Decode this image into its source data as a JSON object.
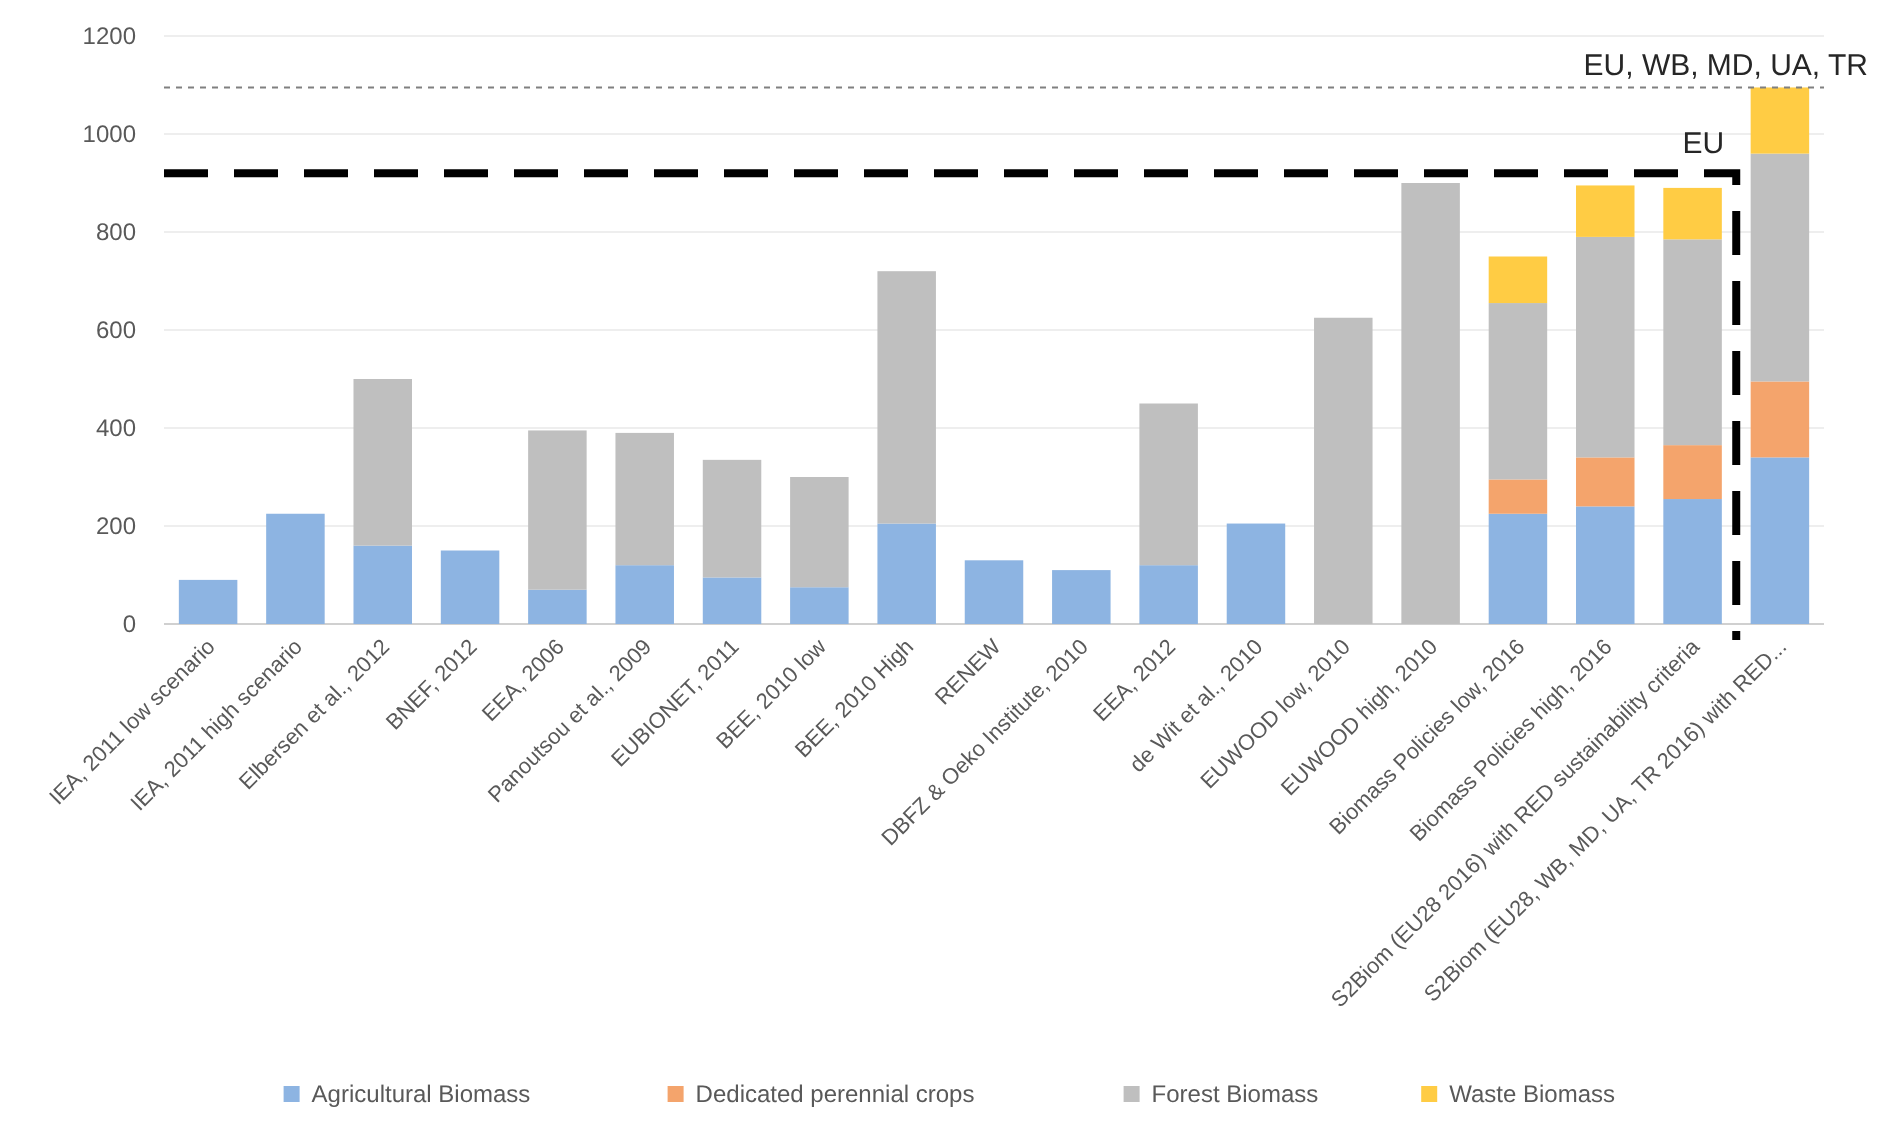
{
  "chart_data": {
    "type": "bar",
    "stacked": true,
    "categories": [
      "IEA, 2011 low scenario",
      "IEA, 2011 high scenario",
      "Elbersen et al., 2012",
      "BNEF, 2012",
      "EEA, 2006",
      "Panoutsou et al., 2009",
      "EUBIONET, 2011",
      "BEE, 2010 low",
      "BEE, 2010 High",
      "RENEW",
      "DBFZ & Oeko Institute, 2010",
      "EEA, 2012",
      "de Wit et al., 2010",
      "EUWOOD low, 2010",
      "EUWOOD high, 2010",
      "Biomass Policies low, 2016",
      "Biomass Policies high, 2016",
      "S2Biom (EU28 2016) with RED sustainability criteria",
      "S2Biom (EU28, WB, MD, UA, TR 2016) with RED..."
    ],
    "series": [
      {
        "name": "Agricultural Biomass",
        "color": "#8db4e2",
        "values": [
          90,
          225,
          160,
          150,
          70,
          120,
          95,
          75,
          205,
          130,
          110,
          120,
          205,
          null,
          null,
          225,
          240,
          255,
          340
        ]
      },
      {
        "name": "Dedicated perennial crops",
        "color": "#f4a46c",
        "values": [
          null,
          null,
          null,
          null,
          null,
          null,
          null,
          null,
          null,
          null,
          null,
          null,
          null,
          null,
          null,
          70,
          100,
          110,
          155
        ]
      },
      {
        "name": "Forest Biomass",
        "color": "#bfbfbf",
        "values": [
          null,
          null,
          340,
          null,
          325,
          270,
          240,
          225,
          515,
          null,
          null,
          330,
          null,
          625,
          900,
          360,
          450,
          420,
          465
        ]
      },
      {
        "name": "Waste Biomass",
        "color": "#ffcc44",
        "values": [
          null,
          null,
          null,
          null,
          null,
          null,
          null,
          null,
          null,
          null,
          null,
          null,
          null,
          null,
          null,
          95,
          105,
          105,
          135
        ]
      }
    ],
    "ylim": [
      0,
      1200
    ],
    "yticks": [
      0,
      200,
      400,
      600,
      800,
      1000,
      1200
    ],
    "grid": "y",
    "legend": "bottom",
    "ref_lines": [
      {
        "axis": "y",
        "value": 1095,
        "label": "EU, WB, MD, UA, TR",
        "color": "#808080",
        "line_style": "dotted"
      },
      {
        "axis": "y",
        "value": 920,
        "label": "EU",
        "color": "#000000",
        "line_style": "dashed"
      }
    ]
  }
}
